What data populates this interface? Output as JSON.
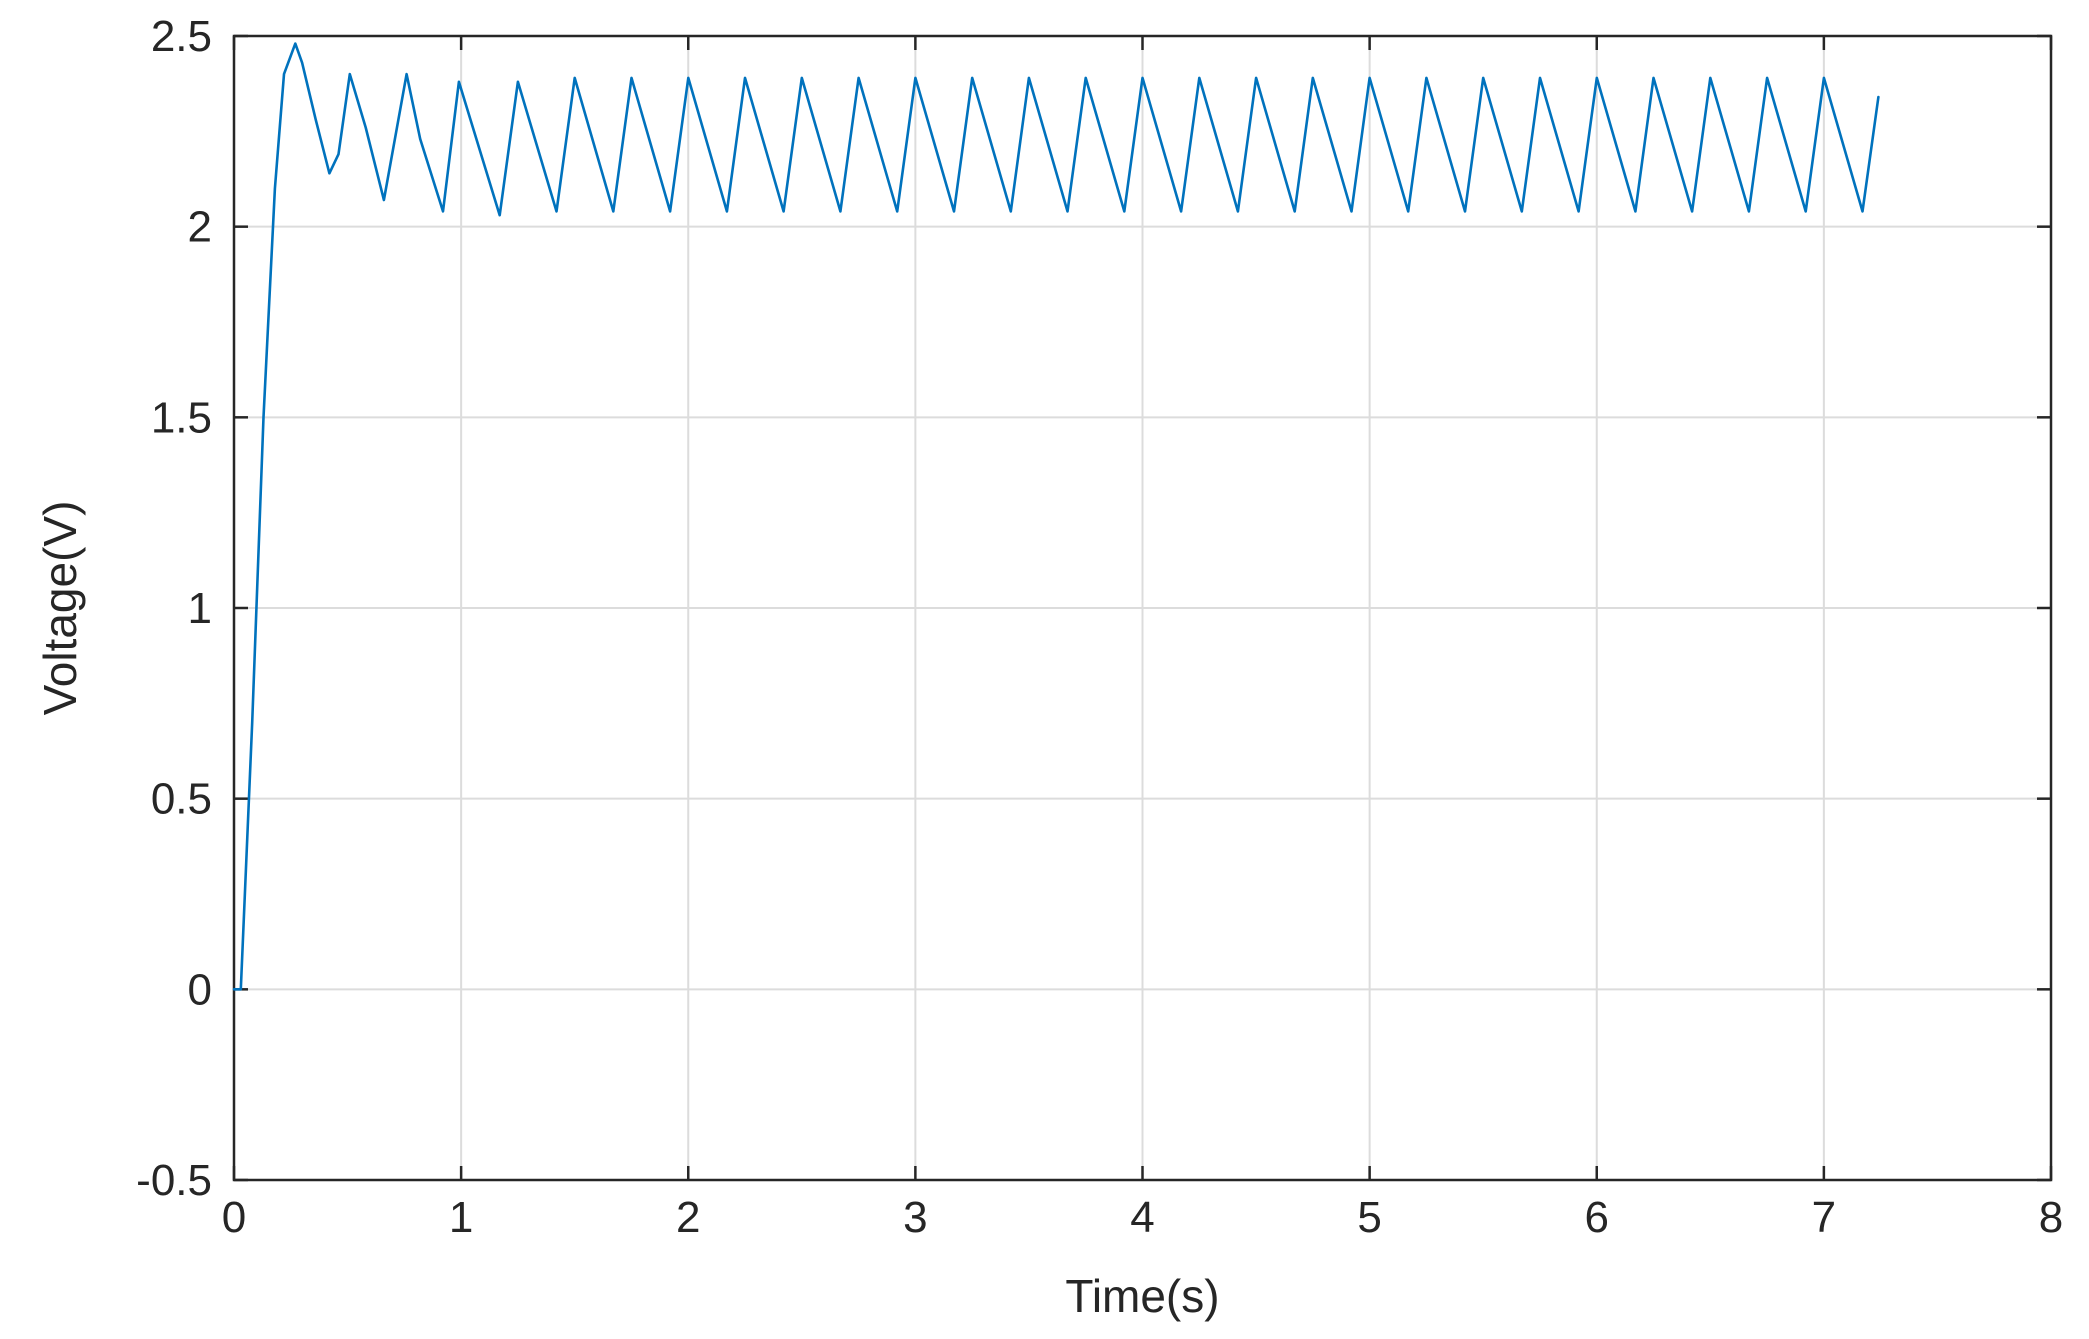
{
  "chart_data": {
    "type": "line",
    "title": "",
    "xlabel": "Time(s)",
    "ylabel": "Voltage(V)",
    "xlim": [
      0,
      8
    ],
    "ylim": [
      -0.5,
      2.5
    ],
    "xticks": [
      0,
      1,
      2,
      3,
      4,
      5,
      6,
      7,
      8
    ],
    "xtick_labels": [
      "0",
      "1",
      "2",
      "3",
      "4",
      "5",
      "6",
      "7",
      "8"
    ],
    "yticks": [
      -0.5,
      0,
      0.5,
      1,
      1.5,
      2,
      2.5
    ],
    "ytick_labels": [
      "-0.5",
      "0",
      "0.5",
      "1",
      "1.5",
      "2",
      "2.5"
    ],
    "grid": true,
    "series": [
      {
        "color": "#0072bd",
        "x": [
          0.0,
          0.03,
          0.08,
          0.13,
          0.18,
          0.22,
          0.27,
          0.3,
          0.36,
          0.42,
          0.46,
          0.51,
          0.58,
          0.66,
          0.76,
          0.82,
          0.92,
          0.99,
          1.17,
          1.25,
          1.42,
          1.5,
          1.67,
          1.75,
          1.92,
          2.0,
          2.17,
          2.25,
          2.42,
          2.5,
          2.67,
          2.75,
          2.92,
          3.0,
          3.17,
          3.25,
          3.42,
          3.5,
          3.67,
          3.75,
          3.92,
          4.0,
          4.17,
          4.25,
          4.42,
          4.5,
          4.67,
          4.75,
          4.92,
          5.0,
          5.17,
          5.25,
          5.42,
          5.5,
          5.67,
          5.75,
          5.92,
          6.0,
          6.17,
          6.25,
          6.42,
          6.5,
          6.67,
          6.75,
          6.92,
          7.0,
          7.17,
          7.24
        ],
        "y": [
          0.0,
          0.0,
          0.7,
          1.5,
          2.1,
          2.4,
          2.48,
          2.43,
          2.28,
          2.14,
          2.19,
          2.4,
          2.26,
          2.07,
          2.4,
          2.23,
          2.04,
          2.38,
          2.03,
          2.38,
          2.04,
          2.39,
          2.04,
          2.39,
          2.04,
          2.39,
          2.04,
          2.39,
          2.04,
          2.39,
          2.04,
          2.39,
          2.04,
          2.39,
          2.04,
          2.39,
          2.04,
          2.39,
          2.04,
          2.39,
          2.04,
          2.39,
          2.04,
          2.39,
          2.04,
          2.39,
          2.04,
          2.39,
          2.04,
          2.39,
          2.04,
          2.39,
          2.04,
          2.39,
          2.04,
          2.39,
          2.04,
          2.39,
          2.04,
          2.39,
          2.04,
          2.39,
          2.04,
          2.39,
          2.04,
          2.39,
          2.04,
          2.34
        ]
      }
    ]
  }
}
